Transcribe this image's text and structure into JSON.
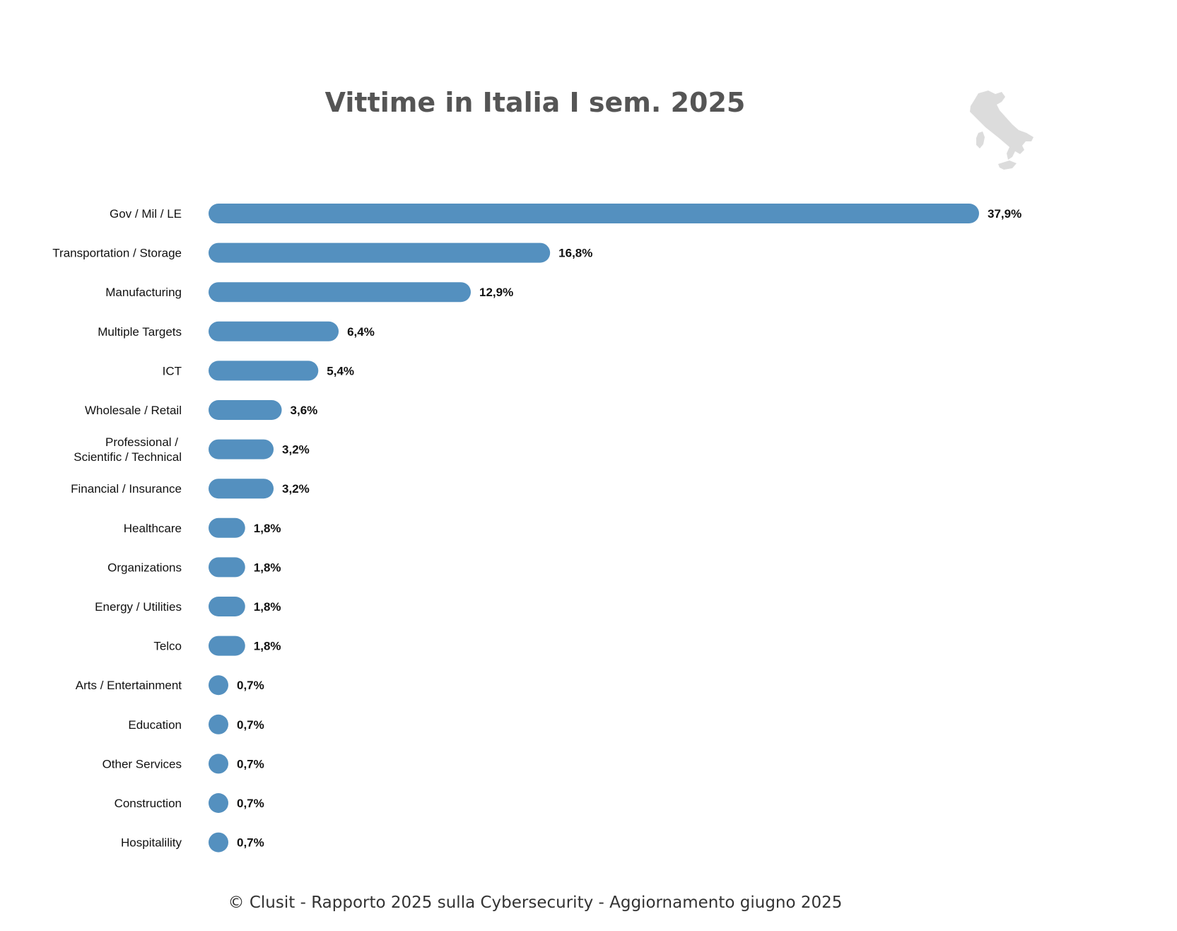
{
  "chart_data": {
    "type": "bar",
    "orientation": "horizontal",
    "title": "Vittime in Italia I sem. 2025",
    "categories": [
      [
        "Gov / Mil / LE"
      ],
      [
        "Transportation / Storage"
      ],
      [
        "Manufacturing"
      ],
      [
        "Multiple Targets"
      ],
      [
        "ICT"
      ],
      [
        "Wholesale / Retail"
      ],
      [
        "Professional /",
        "Scientific / Technical"
      ],
      [
        "Financial / Insurance"
      ],
      [
        "Healthcare"
      ],
      [
        "Organizations"
      ],
      [
        "Energy / Utilities"
      ],
      [
        "Telco"
      ],
      [
        "Arts / Entertainment"
      ],
      [
        "Education"
      ],
      [
        "Other Services"
      ],
      [
        "Construction"
      ],
      [
        "Hospitalility"
      ]
    ],
    "values": [
      37.9,
      16.8,
      12.9,
      6.4,
      5.4,
      3.6,
      3.2,
      3.2,
      1.8,
      1.8,
      1.8,
      1.8,
      0.7,
      0.7,
      0.7,
      0.7,
      0.7
    ],
    "value_labels": [
      "37,9%",
      "16,8%",
      "12,9%",
      "6,4%",
      "5,4%",
      "3,6%",
      "3,2%",
      "3,2%",
      "1,8%",
      "1,8%",
      "1,8%",
      "1,8%",
      "0,7%",
      "0,7%",
      "0,7%",
      "0,7%",
      "0,7%"
    ],
    "unit": "%",
    "xlim": [
      0,
      37.9
    ],
    "grid": false,
    "legend": "none",
    "bar_color": "#5490BF",
    "map_icon": "italy-map-icon",
    "map_color": "#DCDCDC"
  },
  "footer": {
    "text": "© Clusit - Rapporto 2025 sulla Cybersecurity - Aggiornamento giugno 2025"
  }
}
